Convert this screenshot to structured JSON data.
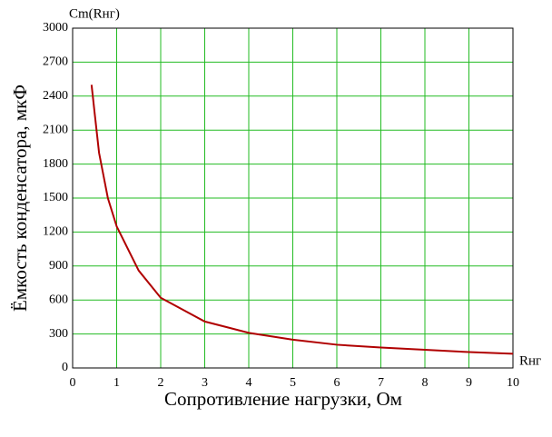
{
  "chart_data": {
    "type": "line",
    "y_axis_name": "Cm(Rнг)",
    "x_axis_name": "Rнг",
    "xlabel": "Сопротивление нагрузки, Ом",
    "ylabel": "Ёмкость конденсатора, мкФ",
    "x": [
      0.43,
      0.5,
      0.6,
      0.8,
      1,
      1.5,
      2,
      3,
      4,
      5,
      6,
      7,
      8,
      9,
      10
    ],
    "series": [
      {
        "color": "#b00000",
        "values": [
          2500,
          2250,
          1900,
          1500,
          1250,
          860,
          620,
          410,
          310,
          250,
          205,
          180,
          160,
          140,
          125
        ]
      }
    ],
    "xlim": [
      0,
      10
    ],
    "ylim": [
      0,
      3000
    ],
    "xticks": [
      0,
      1,
      2,
      3,
      4,
      5,
      6,
      7,
      8,
      9,
      10
    ],
    "yticks": [
      0,
      300,
      600,
      900,
      1200,
      1500,
      1800,
      2100,
      2400,
      2700,
      3000
    ],
    "grid": true,
    "grid_color": "#22bb22"
  }
}
